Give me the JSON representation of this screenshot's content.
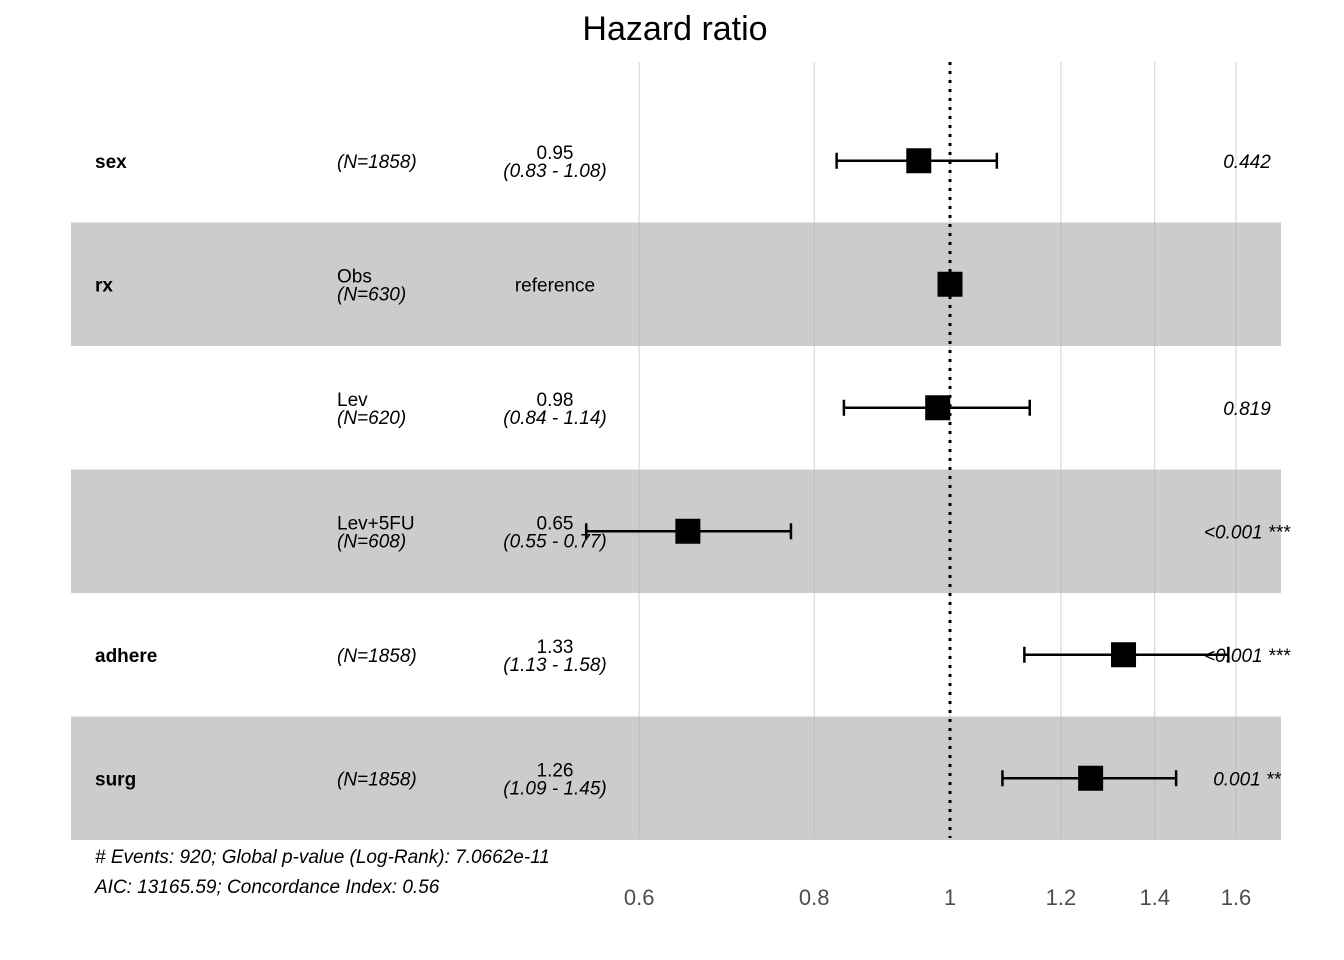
{
  "chart_data": {
    "type": "forest",
    "title": "Hazard ratio",
    "xlabel": "",
    "ylabel": "",
    "x_scale": "log",
    "xlim": [
      0.527,
      1.75
    ],
    "xticks": [
      0.6,
      0.8,
      1,
      1.2,
      1.4,
      1.6
    ],
    "xtick_labels": [
      "0.6",
      "0.8",
      "1",
      "1.2",
      "1.4",
      "1.6"
    ],
    "reference_line": 1,
    "grid": true,
    "rows": [
      {
        "variable": "sex",
        "level": "",
        "n": "(N=1858)",
        "estimate_label": "0.95",
        "ci_label": "(0.83 - 1.08)",
        "p_label": "0.442",
        "hr": 0.95,
        "lower": 0.83,
        "upper": 1.08,
        "shaded": false
      },
      {
        "variable": "rx",
        "level": "Obs",
        "n": "(N=630)",
        "estimate_label": "reference",
        "ci_label": "",
        "p_label": "",
        "hr": 1,
        "lower": null,
        "upper": null,
        "shaded": true
      },
      {
        "variable": "",
        "level": "Lev",
        "n": "(N=620)",
        "estimate_label": "0.98",
        "ci_label": "(0.84 - 1.14)",
        "p_label": "0.819",
        "hr": 0.98,
        "lower": 0.84,
        "upper": 1.14,
        "shaded": false
      },
      {
        "variable": "",
        "level": "Lev+5FU",
        "n": "(N=608)",
        "estimate_label": "0.65",
        "ci_label": "(0.55 - 0.77)",
        "p_label": "<0.001 ***",
        "hr": 0.65,
        "lower": 0.55,
        "upper": 0.77,
        "shaded": true
      },
      {
        "variable": "adhere",
        "level": "",
        "n": "(N=1858)",
        "estimate_label": "1.33",
        "ci_label": "(1.13 - 1.58)",
        "p_label": "<0.001 ***",
        "hr": 1.33,
        "lower": 1.13,
        "upper": 1.58,
        "shaded": false
      },
      {
        "variable": "surg",
        "level": "",
        "n": "(N=1858)",
        "estimate_label": "1.26",
        "ci_label": "(1.09 - 1.45)",
        "p_label": "0.001 **",
        "hr": 1.26,
        "lower": 1.09,
        "upper": 1.45,
        "shaded": true
      }
    ],
    "footnotes": [
      "# Events: 920; Global p-value (Log-Rank): 7.0662e-11",
      "AIC: 13165.59; Concordance Index: 0.56"
    ],
    "colors": {
      "shade": "#cccccc",
      "grid": "#b3b3b3",
      "marker": "#000000",
      "tick_text": "#4d4d4d"
    }
  }
}
